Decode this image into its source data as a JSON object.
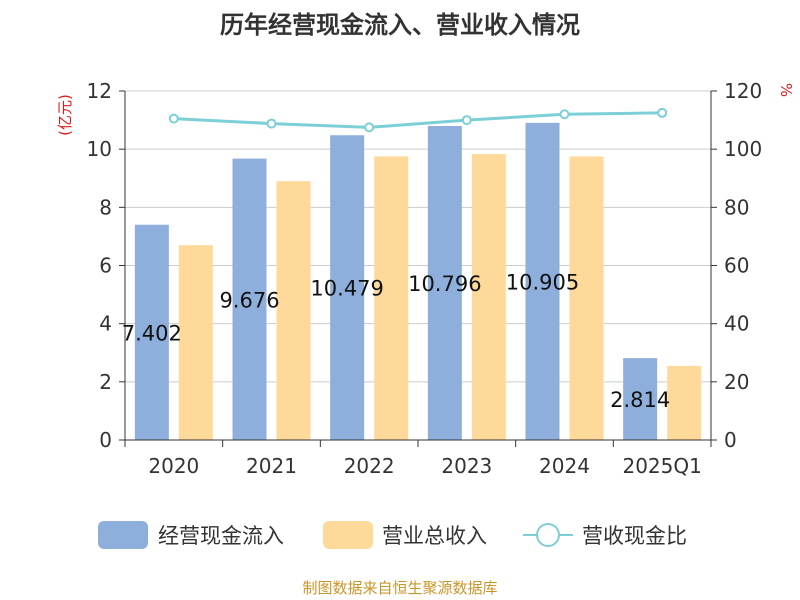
{
  "chart_data": {
    "type": "bar",
    "title": "历年经营现金流入、营业收入情况",
    "categories": [
      "2020",
      "2021",
      "2022",
      "2023",
      "2024",
      "2025Q1"
    ],
    "series": [
      {
        "name": "经营现金流入",
        "type": "bar",
        "axis": "left",
        "color": "#8eaedb",
        "values": [
          7.402,
          9.676,
          10.479,
          10.796,
          10.905,
          2.814
        ]
      },
      {
        "name": "营业总收入",
        "type": "bar",
        "axis": "left",
        "color": "#ffd999",
        "values": [
          6.7,
          8.9,
          9.75,
          9.83,
          9.75,
          2.55
        ]
      },
      {
        "name": "营收现金比",
        "type": "line",
        "axis": "right",
        "color": "#7ccfd6",
        "values": [
          110.5,
          108.8,
          107.5,
          110.0,
          112.0,
          112.5
        ]
      }
    ],
    "data_labels": [
      "7.402",
      "9.676",
      "10.479",
      "10.796",
      "10.905",
      "2.814"
    ],
    "y_left": {
      "unit_label": "(亿元)",
      "min": 0,
      "max": 12,
      "ticks": [
        0,
        2,
        4,
        6,
        8,
        10,
        12
      ]
    },
    "y_right": {
      "unit_label": "%",
      "min": 0,
      "max": 120,
      "ticks": [
        0,
        20,
        40,
        60,
        80,
        100,
        120
      ]
    },
    "grid": true,
    "legend_position": "bottom"
  },
  "source_text": "制图数据来自恒生聚源数据库"
}
